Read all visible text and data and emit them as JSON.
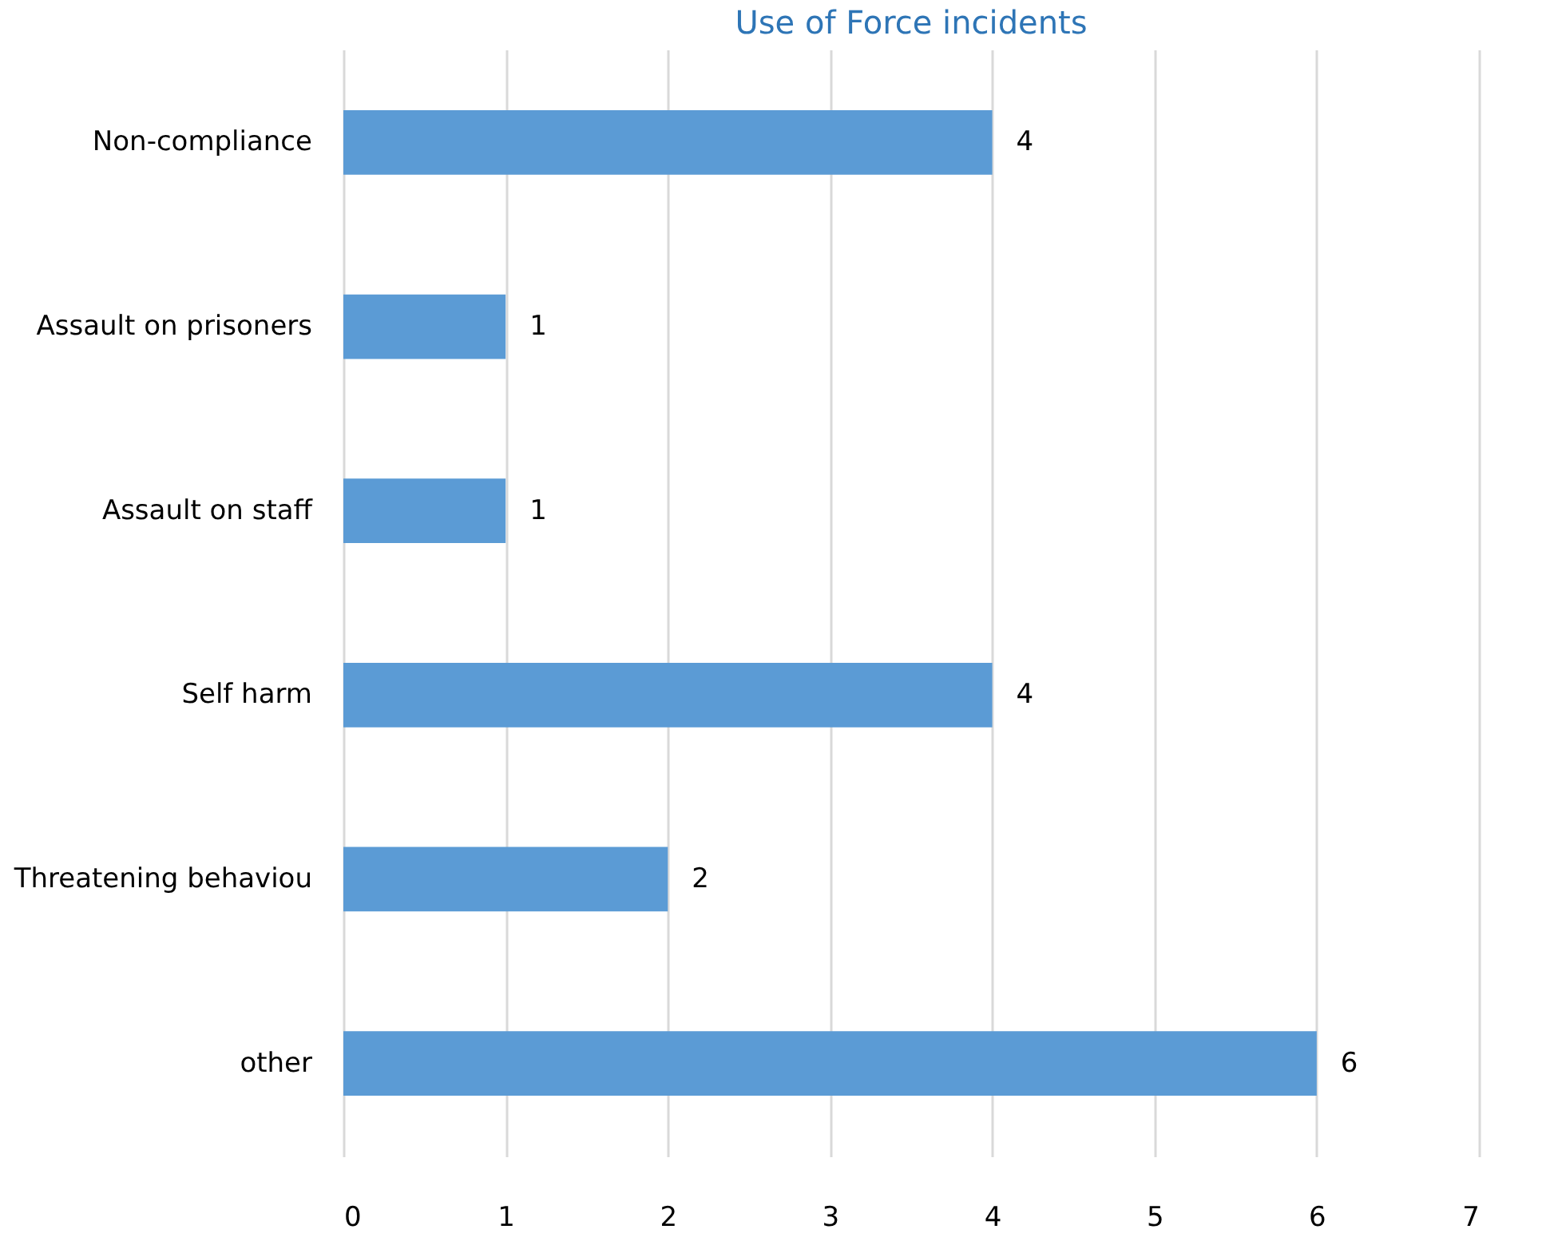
{
  "chart_data": {
    "type": "bar",
    "orientation": "horizontal",
    "title": "Use of Force incidents",
    "categories": [
      "Non-compliance",
      "Assault on prisoners",
      "Assault on staff",
      "Self harm",
      "Threatening behaviou",
      "other"
    ],
    "values": [
      4,
      1,
      1,
      4,
      2,
      6
    ],
    "color": "#5b9bd5",
    "xlim": [
      0,
      7
    ],
    "xticks": [
      0,
      1,
      2,
      3,
      4,
      5,
      6,
      7
    ],
    "grid": "x",
    "data_labels": true
  }
}
